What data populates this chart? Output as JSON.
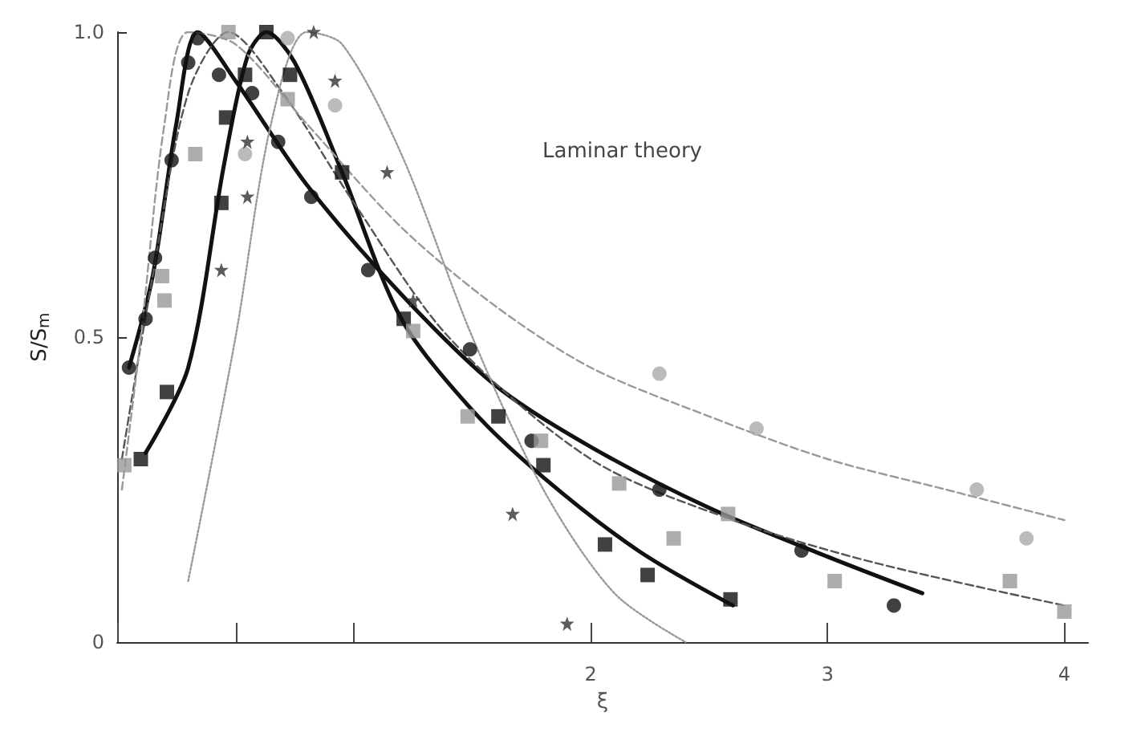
{
  "chart_data": {
    "type": "scatter",
    "xlabel": "ξ",
    "ylabel": "S/S$_{m}$",
    "xlim": [
      0,
      4.1
    ],
    "ylim": [
      0,
      1.0
    ],
    "xticks": [
      {
        "value": 0,
        "label": null
      },
      {
        "value": 0.5,
        "label": null
      },
      {
        "value": 1,
        "label": null
      },
      2,
      3,
      4
    ],
    "yticks": [
      0,
      0.5,
      {
        "value": 1,
        "label": "1.0"
      }
    ],
    "grid": false,
    "annotations": [
      "Laminar theory"
    ],
    "series": [
      {
        "color": "#111111",
        "marker": "circle",
        "x": [
          0.05,
          0.12,
          0.16,
          0.23,
          0.3,
          0.34,
          0.43,
          0.57,
          0.68,
          0.82,
          1.06,
          1.49,
          1.75,
          2.29,
          2.89,
          3.28
        ],
        "values": [
          0.45,
          0.53,
          0.63,
          0.79,
          0.95,
          0.99,
          0.93,
          0.9,
          0.82,
          0.73,
          0.61,
          0.48,
          0.33,
          0.25,
          0.15,
          0.06
        ]
      },
      {
        "color": "#111111",
        "marker": "square",
        "x": [
          0.1,
          0.21,
          0.44,
          0.46,
          0.54,
          0.63,
          0.73,
          0.95,
          1.21,
          1.61,
          1.8,
          2.06,
          2.24,
          2.59
        ],
        "values": [
          0.3,
          0.41,
          0.72,
          0.86,
          0.93,
          1.0,
          0.93,
          0.77,
          0.53,
          0.37,
          0.29,
          0.16,
          0.11,
          0.07
        ]
      },
      {
        "color": "#999999",
        "marker": "square",
        "x": [
          0.03,
          0.19,
          0.2,
          0.33,
          0.47,
          0.72,
          1.25,
          1.48,
          1.79,
          2.12,
          2.35,
          2.58,
          3.03,
          3.77,
          4.0
        ],
        "values": [
          0.29,
          0.6,
          0.56,
          0.8,
          1.0,
          0.89,
          0.51,
          0.37,
          0.33,
          0.26,
          0.17,
          0.21,
          0.1,
          0.1,
          0.05
        ]
      },
      {
        "color": "#aaaaaa",
        "marker": "circle",
        "x": [
          0.54,
          0.72,
          0.92,
          2.29,
          2.7,
          3.63,
          3.84
        ],
        "values": [
          0.8,
          0.99,
          0.88,
          0.44,
          0.35,
          0.25,
          0.17
        ]
      },
      {
        "color": "#333333",
        "marker": "star",
        "x": [
          0.44,
          0.55,
          0.55,
          0.83,
          0.92,
          1.14,
          1.25,
          1.67,
          1.9
        ],
        "values": [
          0.61,
          0.73,
          0.82,
          1.0,
          0.92,
          0.77,
          0.56,
          0.21,
          0.03
        ]
      },
      {
        "type": "line",
        "color": "#111111",
        "line_style": "solid",
        "x": [
          0.05,
          0.15,
          0.25,
          0.34,
          0.5,
          0.8,
          1.2,
          1.6,
          2.0,
          2.5,
          3.0,
          3.4
        ],
        "values": [
          0.45,
          0.6,
          0.85,
          1.0,
          0.92,
          0.75,
          0.57,
          0.42,
          0.32,
          0.22,
          0.14,
          0.08
        ]
      },
      {
        "type": "line",
        "color": "#111111",
        "line_style": "solid",
        "x": [
          0.12,
          0.3,
          0.45,
          0.55,
          0.63,
          0.75,
          0.95,
          1.2,
          1.5,
          1.8,
          2.2,
          2.6
        ],
        "values": [
          0.31,
          0.45,
          0.78,
          0.96,
          1.0,
          0.95,
          0.77,
          0.53,
          0.38,
          0.27,
          0.15,
          0.06
        ]
      },
      {
        "type": "line",
        "color": "#555555",
        "line_style": "dashed",
        "x": [
          0.02,
          0.15,
          0.3,
          0.47,
          0.7,
          1.0,
          1.4,
          2.0,
          2.6,
          3.2,
          4.0
        ],
        "values": [
          0.3,
          0.6,
          0.9,
          1.0,
          0.9,
          0.72,
          0.5,
          0.3,
          0.2,
          0.13,
          0.06
        ]
      },
      {
        "type": "line",
        "color": "#999999",
        "line_style": "dashed",
        "x": [
          0.02,
          0.1,
          0.2,
          0.3,
          0.5,
          0.8,
          1.2,
          1.6,
          2.0,
          2.5,
          3.0,
          3.5,
          4.0
        ],
        "values": [
          0.25,
          0.5,
          0.85,
          1.0,
          0.98,
          0.85,
          0.68,
          0.55,
          0.45,
          0.37,
          0.3,
          0.25,
          0.2
        ]
      },
      {
        "type": "line",
        "color": "#999999",
        "line_style": "dotted",
        "x": [
          0.3,
          0.5,
          0.65,
          0.8,
          0.95,
          1.2,
          1.5,
          1.8,
          2.1,
          2.4
        ],
        "values": [
          0.1,
          0.5,
          0.85,
          1.0,
          0.98,
          0.8,
          0.5,
          0.25,
          0.08,
          0.0
        ]
      }
    ]
  }
}
